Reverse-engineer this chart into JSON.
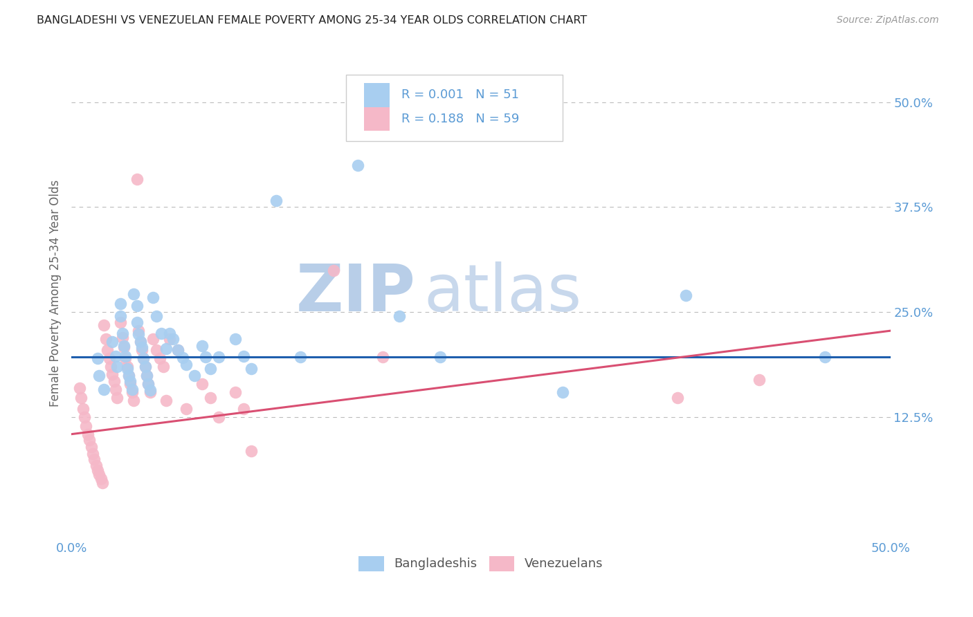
{
  "title": "BANGLADESHI VS VENEZUELAN FEMALE POVERTY AMONG 25-34 YEAR OLDS CORRELATION CHART",
  "source": "Source: ZipAtlas.com",
  "ylabel": "Female Poverty Among 25-34 Year Olds",
  "xlim": [
    0,
    0.5
  ],
  "ylim": [
    -0.02,
    0.565
  ],
  "legend_R1": "0.001",
  "legend_N1": "51",
  "legend_R2": "0.188",
  "legend_N2": "59",
  "blue_color": "#A8CEF0",
  "pink_color": "#F5B8C8",
  "blue_line_color": "#1F5FAD",
  "pink_line_color": "#D94F72",
  "axis_color": "#5B9BD5",
  "watermark_color": "#D8E8F5",
  "grid_color": "#BBBBBB",
  "blue_line": [
    0.0,
    0.197,
    0.5,
    0.197
  ],
  "pink_line": [
    0.0,
    0.105,
    0.5,
    0.228
  ],
  "blue_scatter": [
    [
      0.016,
      0.195
    ],
    [
      0.017,
      0.175
    ],
    [
      0.02,
      0.158
    ],
    [
      0.025,
      0.215
    ],
    [
      0.027,
      0.198
    ],
    [
      0.028,
      0.185
    ],
    [
      0.03,
      0.26
    ],
    [
      0.03,
      0.245
    ],
    [
      0.031,
      0.225
    ],
    [
      0.032,
      0.21
    ],
    [
      0.033,
      0.198
    ],
    [
      0.034,
      0.183
    ],
    [
      0.035,
      0.175
    ],
    [
      0.036,
      0.168
    ],
    [
      0.037,
      0.158
    ],
    [
      0.038,
      0.272
    ],
    [
      0.04,
      0.258
    ],
    [
      0.04,
      0.238
    ],
    [
      0.041,
      0.224
    ],
    [
      0.042,
      0.215
    ],
    [
      0.043,
      0.208
    ],
    [
      0.044,
      0.195
    ],
    [
      0.045,
      0.185
    ],
    [
      0.046,
      0.175
    ],
    [
      0.047,
      0.165
    ],
    [
      0.048,
      0.157
    ],
    [
      0.05,
      0.268
    ],
    [
      0.052,
      0.245
    ],
    [
      0.055,
      0.225
    ],
    [
      0.058,
      0.207
    ],
    [
      0.06,
      0.225
    ],
    [
      0.062,
      0.218
    ],
    [
      0.065,
      0.205
    ],
    [
      0.068,
      0.196
    ],
    [
      0.07,
      0.188
    ],
    [
      0.075,
      0.175
    ],
    [
      0.08,
      0.21
    ],
    [
      0.082,
      0.197
    ],
    [
      0.085,
      0.183
    ],
    [
      0.09,
      0.197
    ],
    [
      0.1,
      0.218
    ],
    [
      0.105,
      0.198
    ],
    [
      0.11,
      0.183
    ],
    [
      0.125,
      0.383
    ],
    [
      0.14,
      0.197
    ],
    [
      0.175,
      0.425
    ],
    [
      0.2,
      0.245
    ],
    [
      0.225,
      0.197
    ],
    [
      0.3,
      0.155
    ],
    [
      0.375,
      0.27
    ],
    [
      0.46,
      0.197
    ]
  ],
  "pink_scatter": [
    [
      0.005,
      0.16
    ],
    [
      0.006,
      0.148
    ],
    [
      0.007,
      0.135
    ],
    [
      0.008,
      0.125
    ],
    [
      0.009,
      0.115
    ],
    [
      0.01,
      0.105
    ],
    [
      0.011,
      0.098
    ],
    [
      0.012,
      0.09
    ],
    [
      0.013,
      0.082
    ],
    [
      0.014,
      0.075
    ],
    [
      0.015,
      0.068
    ],
    [
      0.016,
      0.062
    ],
    [
      0.017,
      0.057
    ],
    [
      0.018,
      0.052
    ],
    [
      0.019,
      0.047
    ],
    [
      0.02,
      0.235
    ],
    [
      0.021,
      0.218
    ],
    [
      0.022,
      0.205
    ],
    [
      0.023,
      0.195
    ],
    [
      0.024,
      0.185
    ],
    [
      0.025,
      0.176
    ],
    [
      0.026,
      0.168
    ],
    [
      0.027,
      0.158
    ],
    [
      0.028,
      0.148
    ],
    [
      0.03,
      0.238
    ],
    [
      0.031,
      0.22
    ],
    [
      0.032,
      0.208
    ],
    [
      0.033,
      0.195
    ],
    [
      0.034,
      0.185
    ],
    [
      0.035,
      0.175
    ],
    [
      0.036,
      0.165
    ],
    [
      0.037,
      0.155
    ],
    [
      0.038,
      0.145
    ],
    [
      0.04,
      0.408
    ],
    [
      0.041,
      0.228
    ],
    [
      0.042,
      0.215
    ],
    [
      0.043,
      0.205
    ],
    [
      0.044,
      0.195
    ],
    [
      0.045,
      0.185
    ],
    [
      0.046,
      0.175
    ],
    [
      0.047,
      0.165
    ],
    [
      0.048,
      0.155
    ],
    [
      0.05,
      0.218
    ],
    [
      0.052,
      0.205
    ],
    [
      0.054,
      0.195
    ],
    [
      0.056,
      0.185
    ],
    [
      0.058,
      0.145
    ],
    [
      0.06,
      0.218
    ],
    [
      0.065,
      0.205
    ],
    [
      0.07,
      0.135
    ],
    [
      0.08,
      0.165
    ],
    [
      0.085,
      0.148
    ],
    [
      0.09,
      0.125
    ],
    [
      0.1,
      0.155
    ],
    [
      0.105,
      0.135
    ],
    [
      0.11,
      0.085
    ],
    [
      0.16,
      0.3
    ],
    [
      0.19,
      0.197
    ],
    [
      0.37,
      0.148
    ],
    [
      0.42,
      0.17
    ]
  ]
}
